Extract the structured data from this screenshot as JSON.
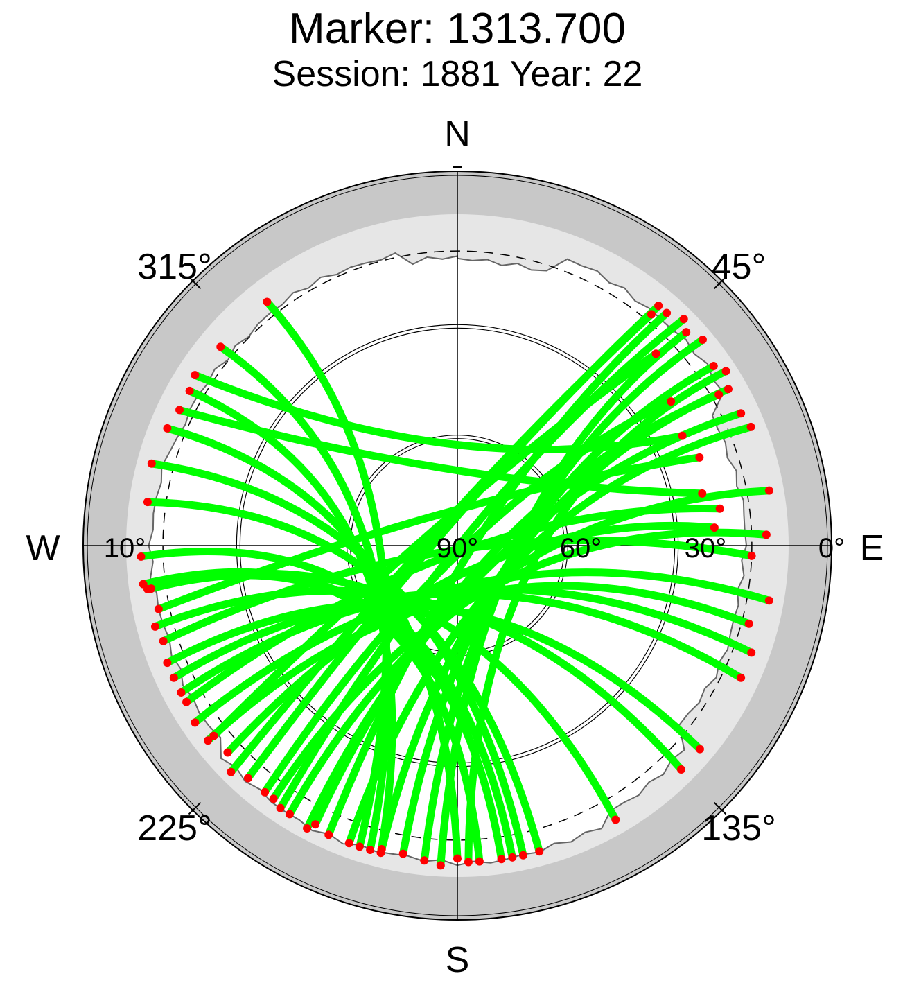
{
  "chart_data": {
    "type": "scatter",
    "projection": "polar-skyplot",
    "title": "Marker: 1313.700",
    "subtitle": "Session: 1881 Year: 22",
    "directions": {
      "north": "N",
      "south": "S",
      "east": "E",
      "west": "W"
    },
    "azimuth_labels": [
      {
        "azimuth": 45,
        "text": "45°"
      },
      {
        "azimuth": 135,
        "text": "135°"
      },
      {
        "azimuth": 225,
        "text": "225°"
      },
      {
        "azimuth": 315,
        "text": "315°"
      }
    ],
    "elevation_labels": [
      {
        "elevation": 90,
        "text": "90°"
      },
      {
        "elevation": 60,
        "text": "60°"
      },
      {
        "elevation": 30,
        "text": "30°"
      },
      {
        "elevation": 10,
        "text": "10°"
      },
      {
        "elevation": 0,
        "text": "0°"
      }
    ],
    "elevation_circles": [
      60,
      30
    ],
    "elevation_mask_dashed": 10,
    "elevation_range": [
      0,
      90
    ],
    "colors": {
      "track": "#00ff00",
      "endpoint": "#ff0000",
      "horizon_ring": "#c8c8c8",
      "mask_region": "#e6e6e6",
      "background": "#ffffff"
    },
    "tracks": [
      {
        "start": [
          40,
          5
        ],
        "end": [
          222,
          5
        ]
      },
      {
        "start": [
          40,
          8
        ],
        "end": [
          225,
          3
        ]
      },
      {
        "start": [
          42,
          5
        ],
        "end": [
          204,
          4
        ]
      },
      {
        "start": [
          45,
          3
        ],
        "end": [
          214,
          4
        ]
      },
      {
        "start": [
          47,
          5
        ],
        "end": [
          183,
          3
        ]
      },
      {
        "start": [
          50,
          3
        ],
        "end": [
          186,
          4
        ]
      },
      {
        "start": [
          55,
          5
        ],
        "end": [
          190,
          5
        ]
      },
      {
        "start": [
          57,
          3
        ],
        "end": [
          178,
          4
        ]
      },
      {
        "start": [
          60,
          5
        ],
        "end": [
          194,
          5
        ]
      },
      {
        "start": [
          60,
          8
        ],
        "end": [
          207,
          5
        ]
      },
      {
        "start": [
          65,
          5
        ],
        "end": [
          208,
          3
        ]
      },
      {
        "start": [
          68,
          4
        ],
        "end": [
          200,
          4
        ]
      },
      {
        "start": [
          80,
          4
        ],
        "end": [
          212,
          4
        ]
      },
      {
        "start": [
          88,
          6
        ],
        "end": [
          216,
          5
        ]
      },
      {
        "start": [
          100,
          4
        ],
        "end": [
          236,
          4
        ]
      },
      {
        "start": [
          105,
          8
        ],
        "end": [
          232,
          4
        ]
      },
      {
        "start": [
          110,
          5
        ],
        "end": [
          242,
          5
        ]
      },
      {
        "start": [
          115,
          5
        ],
        "end": [
          245,
          5
        ]
      },
      {
        "start": [
          130,
          4
        ],
        "end": [
          248,
          5
        ]
      },
      {
        "start": [
          135,
          4
        ],
        "end": [
          255,
          5
        ]
      },
      {
        "start": [
          150,
          4
        ],
        "end": [
          262,
          5
        ]
      },
      {
        "start": [
          165,
          4
        ],
        "end": [
          278,
          5
        ]
      },
      {
        "start": [
          168,
          4
        ],
        "end": [
          285,
          4
        ]
      },
      {
        "start": [
          170,
          4
        ],
        "end": [
          268,
          4
        ]
      },
      {
        "start": [
          172,
          4
        ],
        "end": [
          263,
          4
        ]
      },
      {
        "start": [
          176,
          4
        ],
        "end": [
          262,
          6
        ]
      },
      {
        "start": [
          180,
          5
        ],
        "end": [
          292,
          5
        ]
      },
      {
        "start": [
          194,
          4
        ],
        "end": [
          300,
          6
        ]
      },
      {
        "start": [
          196,
          4
        ],
        "end": [
          310,
          6
        ]
      },
      {
        "start": [
          198,
          4
        ],
        "end": [
          322,
          6
        ]
      },
      {
        "start": [
          78,
          22
        ],
        "end": [
          296,
          6
        ]
      },
      {
        "start": [
          64,
          22
        ],
        "end": [
          303,
          5
        ]
      },
      {
        "start": [
          70,
          20
        ],
        "end": [
          258,
          7
        ]
      },
      {
        "start": [
          82,
          18
        ],
        "end": [
          240,
          5
        ]
      },
      {
        "start": [
          86,
          20
        ],
        "end": [
          228,
          6
        ]
      },
      {
        "start": [
          46,
          15
        ],
        "end": [
          232,
          6
        ]
      },
      {
        "start": [
          56,
          20
        ],
        "end": [
          218,
          5
        ]
      },
      {
        "start": [
          92,
          10
        ],
        "end": [
          252,
          6
        ]
      }
    ]
  }
}
